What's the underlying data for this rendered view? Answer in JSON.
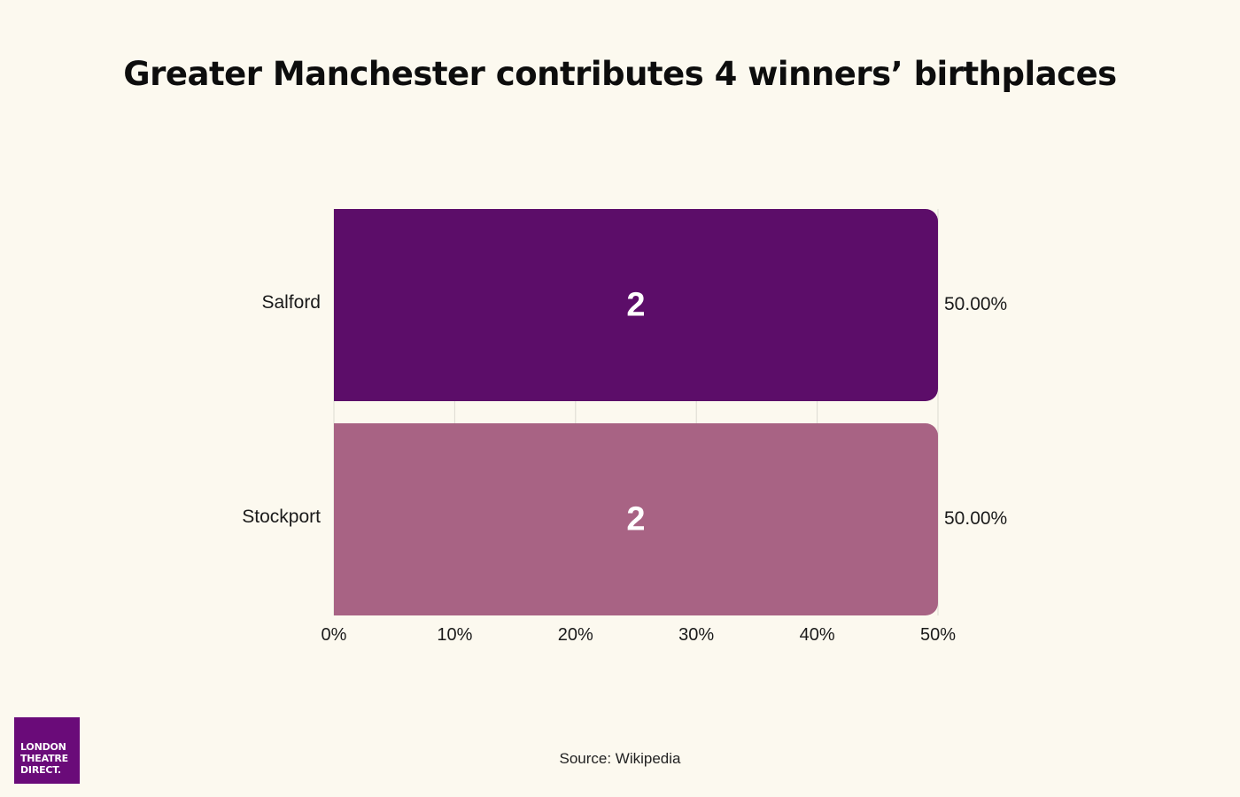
{
  "title": "Greater Manchester contributes 4 winners’ birthplaces",
  "source": "Source: Wikipedia",
  "logo": {
    "lines": [
      "LONDON",
      "THEATRE",
      "DIRECT."
    ],
    "color": "#6a0b79"
  },
  "chart_data": {
    "type": "bar",
    "orientation": "horizontal",
    "title": "Greater Manchester contributes 4 winners’ birthplaces",
    "categories": [
      "Salford",
      "Stockport"
    ],
    "values": [
      2,
      2
    ],
    "percent_values": [
      50,
      50
    ],
    "value_labels": [
      "2",
      "2"
    ],
    "percent_labels": [
      "50.00%",
      "50.00%"
    ],
    "colors": [
      "#5c0d69",
      "#a86384"
    ],
    "xlim": [
      0,
      50
    ],
    "x_ticks": [
      0,
      10,
      20,
      30,
      40,
      50
    ],
    "x_tick_labels": [
      "0%",
      "10%",
      "20%",
      "30%",
      "40%",
      "50%"
    ],
    "xlabel": "",
    "ylabel": "",
    "grid": "vertical",
    "legend": "none"
  }
}
